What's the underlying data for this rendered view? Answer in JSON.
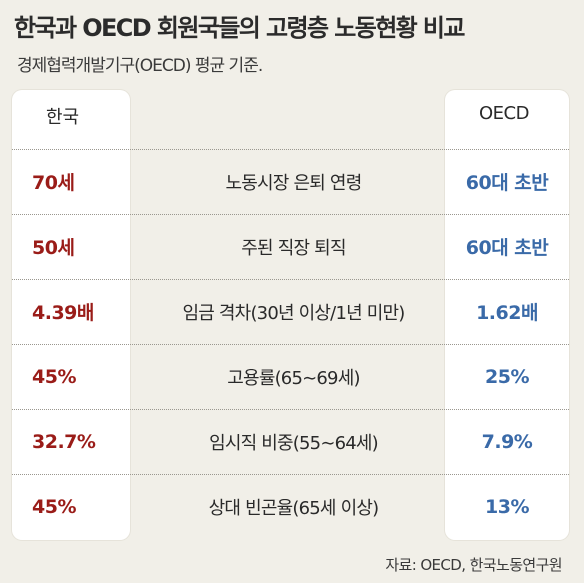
{
  "chart_data": {
    "type": "table",
    "title": "한국과 OECD 회원국들의 고령층 노동현황 비교",
    "subtitle": "경제협력개발기구(OECD) 평균 기준.",
    "columns": {
      "korea": "한국",
      "oecd": "OECD"
    },
    "rows": [
      {
        "korea": "70세",
        "item": "노동시장 은퇴 연령",
        "oecd": "60대 초반"
      },
      {
        "korea": "50세",
        "item": "주된 직장 퇴직",
        "oecd": "60대 초반"
      },
      {
        "korea": "4.39배",
        "item": "임금 격차(30년 이상/1년 미만)",
        "oecd": "1.62배"
      },
      {
        "korea": "45%",
        "item": "고용률(65∼69세)",
        "oecd": "25%"
      },
      {
        "korea": "32.7%",
        "item": "임시직 비중(55∼64세)",
        "oecd": "7.9%"
      },
      {
        "korea": "45%",
        "item": "상대 빈곤율(65세 이상)",
        "oecd": "13%"
      }
    ],
    "source": "자료: OECD, 한국노동연구원",
    "colors": {
      "korea": "#9a1c18",
      "oecd": "#3a6aa8",
      "background": "#f1efe8"
    }
  }
}
